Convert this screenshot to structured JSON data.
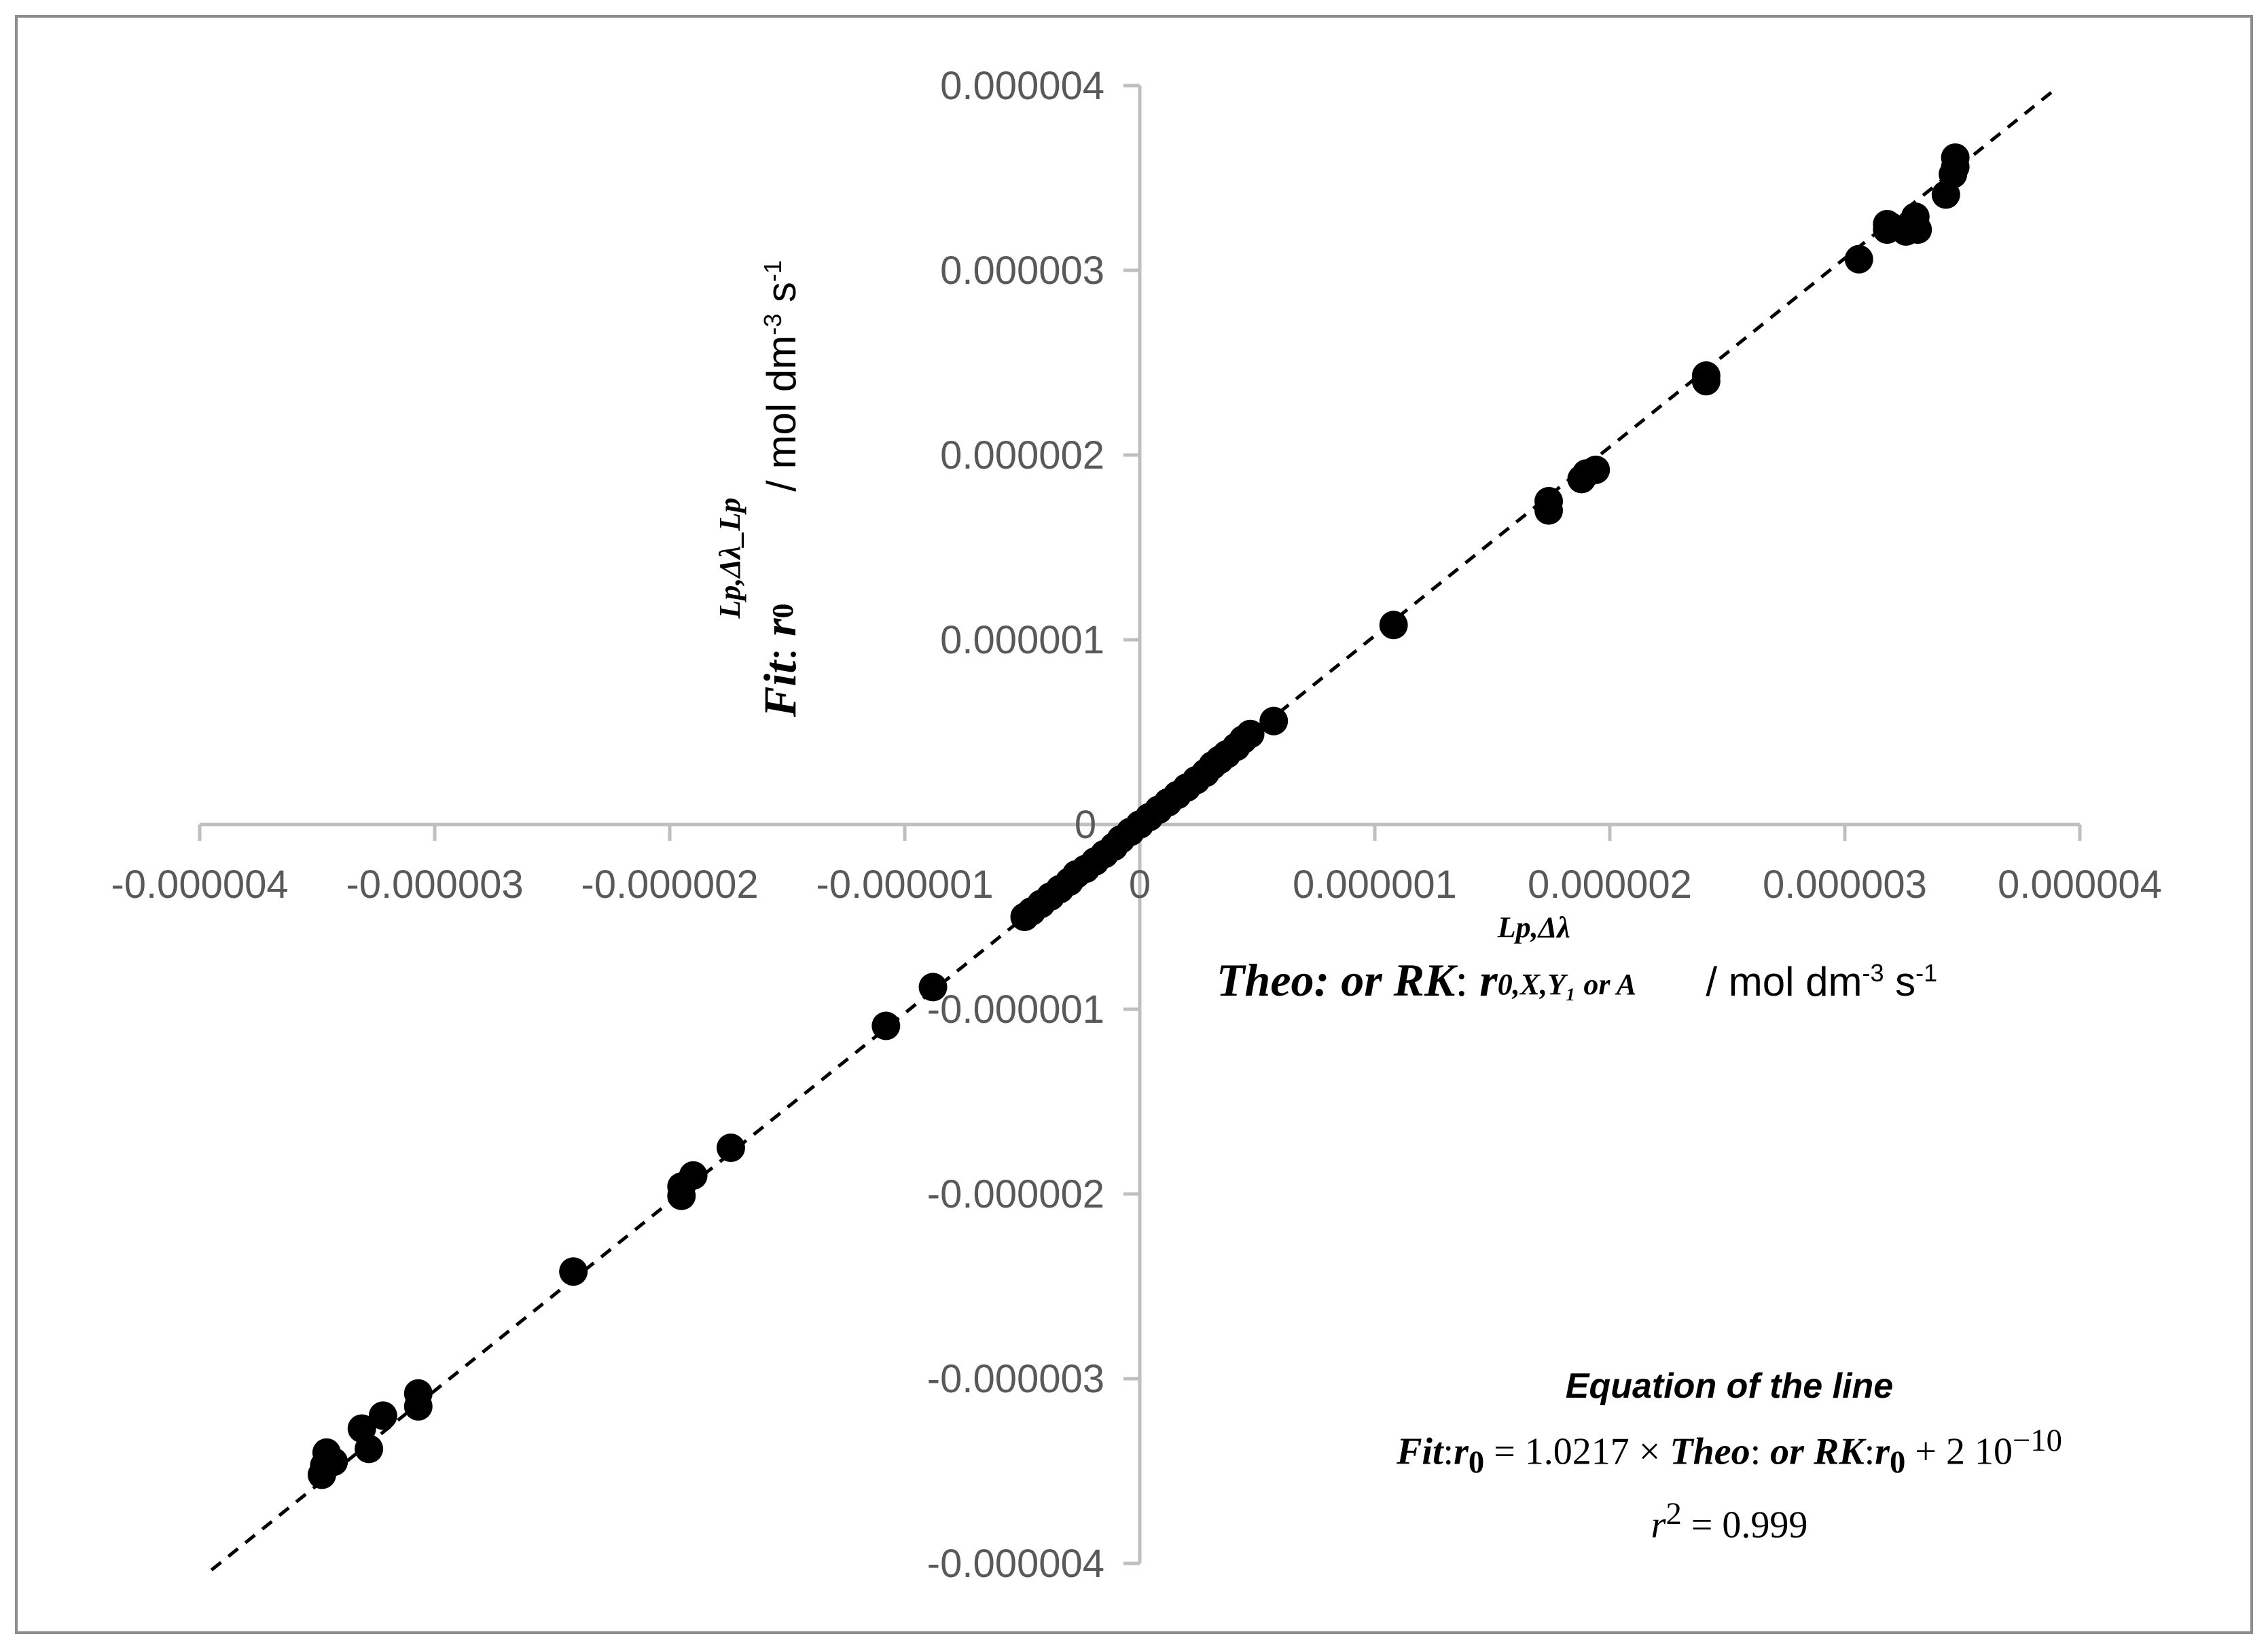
{
  "chart_data": {
    "type": "scatter",
    "title": "",
    "xlabel": {
      "prefix": "Theo",
      "connector1": ": or ",
      "model": "RK",
      "connector2": ": ",
      "symbol": "r",
      "superscript": "Lp,Δλ",
      "subscript": "0,X,Y₁ or A",
      "units": " /  mol dm-3 s-1"
    },
    "ylabel": {
      "prefix": "Fit",
      "connector": ": ",
      "symbol": "r",
      "superscript": "Lp,Δλ_Lp",
      "subscript": "0",
      "units": " /  mol dm-3 s-1"
    },
    "xlim": [
      -4e-06,
      4e-06
    ],
    "ylim": [
      -4e-06,
      4e-06
    ],
    "x_ticks": [
      "-0.000004",
      "-0.000003",
      "-0.000002",
      "-0.000001",
      "0",
      "0.000001",
      "0.000002",
      "0.000003",
      "0.000004"
    ],
    "y_ticks": [
      "-0.000004",
      "-0.000003",
      "-0.000002",
      "-0.000001",
      "0",
      "0.000001",
      "0.000002",
      "0.000003",
      "0.000004"
    ],
    "grid": false,
    "marker_color": "#000000",
    "trendline": {
      "style": "dashed",
      "slope": 1.0217,
      "intercept": 2e-10,
      "color": "#000000"
    },
    "points": [
      [
        -3.48e-06,
        -3.52e-06
      ],
      [
        -3.47e-06,
        -3.47e-06
      ],
      [
        -3.46e-06,
        -3.4e-06
      ],
      [
        -3.43e-06,
        -3.45e-06
      ],
      [
        -3.31e-06,
        -3.27e-06
      ],
      [
        -3.28e-06,
        -3.38e-06
      ],
      [
        -3.22e-06,
        -3.2e-06
      ],
      [
        -3.07e-06,
        -3.15e-06
      ],
      [
        -3.07e-06,
        -3.08e-06
      ],
      [
        -2.41e-06,
        -2.42e-06
      ],
      [
        -1.95e-06,
        -2.01e-06
      ],
      [
        -1.95e-06,
        -1.96e-06
      ],
      [
        -1.9e-06,
        -1.9e-06
      ],
      [
        -1.74e-06,
        -1.75e-06
      ],
      [
        -1.08e-06,
        -1.09e-06
      ],
      [
        -8.8e-07,
        -8.8e-07
      ],
      [
        -4.9e-07,
        -5e-07
      ],
      [
        -4.6e-07,
        -4.7e-07
      ],
      [
        -4.2e-07,
        -4.3e-07
      ],
      [
        -3.8e-07,
        -3.9e-07
      ],
      [
        -3.4e-07,
        -3.5e-07
      ],
      [
        -3e-07,
        -3.1e-07
      ],
      [
        -2.7e-07,
        -2.7e-07
      ],
      [
        -2.3e-07,
        -2.4e-07
      ],
      [
        -1.9e-07,
        -2e-07
      ],
      [
        -1.5e-07,
        -1.6e-07
      ],
      [
        -1.1e-07,
        -1.2e-07
      ],
      [
        -8e-08,
        -8e-08
      ],
      [
        -4e-08,
        -4e-08
      ],
      [
        0.0,
        0.0
      ],
      [
        4e-08,
        4e-08
      ],
      [
        8e-08,
        8e-08
      ],
      [
        1.2e-07,
        1.2e-07
      ],
      [
        1.6e-07,
        1.6e-07
      ],
      [
        2e-07,
        2e-07
      ],
      [
        2.4e-07,
        2.4e-07
      ],
      [
        2.8e-07,
        2.8e-07
      ],
      [
        3.1e-07,
        3.2e-07
      ],
      [
        3.4e-07,
        3.5e-07
      ],
      [
        3.7e-07,
        3.8e-07
      ],
      [
        4.1e-07,
        4.2e-07
      ],
      [
        4.4e-07,
        4.6e-07
      ],
      [
        4.7e-07,
        4.9e-07
      ],
      [
        5.7e-07,
        5.6e-07
      ],
      [
        1.08e-06,
        1.08e-06
      ],
      [
        1.74e-06,
        1.7e-06
      ],
      [
        1.74e-06,
        1.75e-06
      ],
      [
        1.88e-06,
        1.87e-06
      ],
      [
        1.9e-06,
        1.9e-06
      ],
      [
        1.94e-06,
        1.92e-06
      ],
      [
        2.41e-06,
        2.4e-06
      ],
      [
        2.41e-06,
        2.43e-06
      ],
      [
        3.06e-06,
        3.06e-06
      ],
      [
        3.18e-06,
        3.22e-06
      ],
      [
        3.18e-06,
        3.25e-06
      ],
      [
        3.26e-06,
        3.21e-06
      ],
      [
        3.28e-06,
        3.25e-06
      ],
      [
        3.3e-06,
        3.29e-06
      ],
      [
        3.31e-06,
        3.22e-06
      ],
      [
        3.43e-06,
        3.41e-06
      ],
      [
        3.46e-06,
        3.52e-06
      ],
      [
        3.47e-06,
        3.56e-06
      ],
      [
        3.47e-06,
        3.61e-06
      ]
    ]
  },
  "equation": {
    "heading": "Equation of the line",
    "line1": {
      "lhs_label": "Fit",
      "lhs_sep": ":",
      "lhs_symbol": "r",
      "lhs_sub": "0",
      "equals": " = 1.0217 × ",
      "rhs_label": "Theo",
      "rhs_sep": ": ",
      "rhs_or": "or",
      "rhs_model": "RK",
      "rhs_sep2": ":",
      "rhs_symbol": "r",
      "rhs_sub": "0",
      "plus": " + 2 10",
      "exponent": "−10"
    },
    "line2": {
      "symbol": "r",
      "power": "2",
      "rest": " = 0.999"
    }
  }
}
